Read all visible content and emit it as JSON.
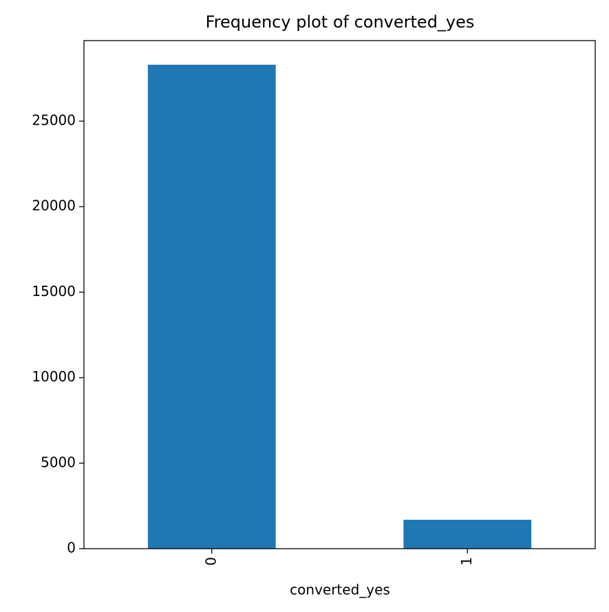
{
  "chart_data": {
    "type": "bar",
    "title": "Frequency plot of converted_yes",
    "x_label": "converted_yes",
    "categories": [
      "0",
      "1"
    ],
    "values": [
      28300,
      1690
    ],
    "color": "#1f77b4",
    "ylim": [
      0,
      29710
    ],
    "yticks": [
      0,
      5000,
      10000,
      15000,
      20000,
      25000
    ],
    "grid": false
  }
}
